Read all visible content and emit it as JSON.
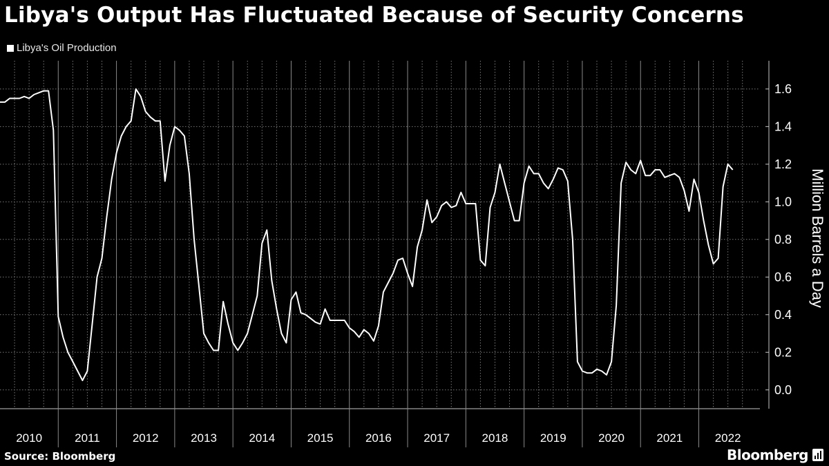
{
  "header": {
    "title": "Libya's Output Has Fluctuated Because of Security Concerns"
  },
  "footer": {
    "source": "Source:  Bloomberg",
    "brand": "Bloomberg"
  },
  "colors": {
    "background": "#000000",
    "line": "#ffffff",
    "grid": "#7a7a7a"
  },
  "chart_data": {
    "type": "line",
    "title": "Libya's Output Has Fluctuated Because of Security Concerns",
    "ylabel": "Million Barrels a Day",
    "xlabel": "",
    "ylim": [
      -0.1,
      1.75
    ],
    "yticks": [
      0.0,
      0.2,
      0.4,
      0.6,
      0.8,
      1.0,
      1.2,
      1.4,
      1.6
    ],
    "ytick_labels": [
      "0.0",
      "0.2",
      "0.4",
      "0.6",
      "0.8",
      "1.0",
      "1.2",
      "1.4",
      "1.6"
    ],
    "xlim": [
      2010.0,
      2023.05
    ],
    "year_ticks": [
      2010,
      2011,
      2012,
      2013,
      2014,
      2015,
      2016,
      2017,
      2018,
      2019,
      2020,
      2021,
      2022
    ],
    "year_labels": [
      "2010",
      "2011",
      "2012",
      "2013",
      "2014",
      "2015",
      "2016",
      "2017",
      "2018",
      "2019",
      "2020",
      "2021",
      "2022"
    ],
    "grid": true,
    "legend": {
      "position": "top-left",
      "entries": [
        "Libya's Oil Production"
      ]
    },
    "series": [
      {
        "name": "Libya's Oil Production",
        "start": "2010-01",
        "frequency": "monthly",
        "values": [
          1.53,
          1.53,
          1.55,
          1.55,
          1.55,
          1.56,
          1.55,
          1.57,
          1.58,
          1.59,
          1.59,
          1.38,
          0.39,
          0.28,
          0.2,
          0.15,
          0.1,
          0.05,
          0.1,
          0.35,
          0.6,
          0.7,
          0.92,
          1.12,
          1.26,
          1.35,
          1.4,
          1.43,
          1.6,
          1.56,
          1.48,
          1.45,
          1.43,
          1.43,
          1.11,
          1.3,
          1.4,
          1.38,
          1.35,
          1.15,
          0.8,
          0.55,
          0.3,
          0.25,
          0.21,
          0.21,
          0.47,
          0.35,
          0.25,
          0.21,
          0.25,
          0.3,
          0.4,
          0.5,
          0.78,
          0.85,
          0.58,
          0.43,
          0.3,
          0.25,
          0.48,
          0.52,
          0.41,
          0.4,
          0.38,
          0.36,
          0.35,
          0.43,
          0.37,
          0.37,
          0.37,
          0.37,
          0.33,
          0.31,
          0.28,
          0.32,
          0.3,
          0.26,
          0.34,
          0.52,
          0.57,
          0.62,
          0.69,
          0.7,
          0.62,
          0.55,
          0.76,
          0.85,
          1.01,
          0.89,
          0.92,
          0.98,
          1.0,
          0.97,
          0.98,
          1.05,
          0.99,
          0.99,
          0.99,
          0.69,
          0.66,
          0.97,
          1.05,
          1.2,
          1.1,
          1.0,
          0.9,
          0.9,
          1.1,
          1.19,
          1.15,
          1.15,
          1.1,
          1.07,
          1.12,
          1.18,
          1.17,
          1.11,
          0.8,
          0.15,
          0.1,
          0.09,
          0.09,
          0.11,
          0.1,
          0.08,
          0.15,
          0.45,
          1.1,
          1.21,
          1.17,
          1.15,
          1.22,
          1.14,
          1.14,
          1.17,
          1.17,
          1.13,
          1.14,
          1.15,
          1.13,
          1.06,
          0.95,
          1.12,
          1.05,
          0.9,
          0.77,
          0.67,
          0.7,
          1.08,
          1.2,
          1.17
        ]
      }
    ]
  }
}
